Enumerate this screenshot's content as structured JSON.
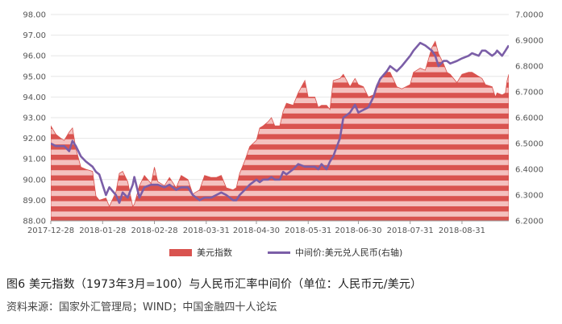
{
  "chart_data": {
    "type": "area",
    "colors": {
      "area": "#d9534f",
      "area_stripe": "#f4c1bf",
      "line": "#7b5ea7",
      "grid": "#e6e6e6"
    },
    "x_labels": [
      "2017-12-28",
      "2018-01-28",
      "2018-02-28",
      "2018-03-31",
      "2018-04-30",
      "2018-05-31",
      "2018-06-30",
      "2018-07-31",
      "2018-08-31"
    ],
    "y_left": {
      "min": 88,
      "max": 98,
      "ticks": [
        "88.00",
        "89.00",
        "90.00",
        "91.00",
        "92.00",
        "93.00",
        "94.00",
        "95.00",
        "96.00",
        "97.00",
        "98.00"
      ]
    },
    "y_right": {
      "min": 6.2,
      "max": 7.0,
      "ticks": [
        "6.2000",
        "6.3000",
        "6.4000",
        "6.5000",
        "6.6000",
        "6.7000",
        "6.8000",
        "6.9000",
        "7.0000"
      ]
    },
    "x_range": [
      "2017-12-28",
      "2018-09-28"
    ],
    "series": [
      {
        "name": "美元指数",
        "axis": "left",
        "points": [
          [
            "2017-12-28",
            92.6
          ],
          [
            "2017-12-31",
            92.2
          ],
          [
            "2018-01-03",
            92.0
          ],
          [
            "2018-01-05",
            91.9
          ],
          [
            "2018-01-08",
            92.3
          ],
          [
            "2018-01-10",
            92.5
          ],
          [
            "2018-01-12",
            91.5
          ],
          [
            "2018-01-15",
            90.6
          ],
          [
            "2018-01-18",
            90.5
          ],
          [
            "2018-01-22",
            90.4
          ],
          [
            "2018-01-24",
            89.2
          ],
          [
            "2018-01-26",
            89.0
          ],
          [
            "2018-01-30",
            89.1
          ],
          [
            "2018-02-01",
            88.7
          ],
          [
            "2018-02-05",
            89.4
          ],
          [
            "2018-02-07",
            90.3
          ],
          [
            "2018-02-09",
            90.4
          ],
          [
            "2018-02-12",
            89.9
          ],
          [
            "2018-02-15",
            88.7
          ],
          [
            "2018-02-16",
            88.8
          ],
          [
            "2018-02-19",
            89.7
          ],
          [
            "2018-02-22",
            90.2
          ],
          [
            "2018-02-26",
            89.8
          ],
          [
            "2018-02-28",
            90.6
          ],
          [
            "2018-03-02",
            89.9
          ],
          [
            "2018-03-06",
            89.7
          ],
          [
            "2018-03-09",
            90.1
          ],
          [
            "2018-03-13",
            89.6
          ],
          [
            "2018-03-16",
            90.2
          ],
          [
            "2018-03-20",
            90.0
          ],
          [
            "2018-03-23",
            89.3
          ],
          [
            "2018-03-27",
            89.5
          ],
          [
            "2018-03-30",
            90.2
          ],
          [
            "2018-04-03",
            90.1
          ],
          [
            "2018-04-06",
            90.1
          ],
          [
            "2018-04-09",
            90.2
          ],
          [
            "2018-04-12",
            89.6
          ],
          [
            "2018-04-16",
            89.5
          ],
          [
            "2018-04-18",
            89.6
          ],
          [
            "2018-04-20",
            90.3
          ],
          [
            "2018-04-23",
            90.9
          ],
          [
            "2018-04-26",
            91.6
          ],
          [
            "2018-04-30",
            91.9
          ],
          [
            "2018-05-02",
            92.5
          ],
          [
            "2018-05-04",
            92.6
          ],
          [
            "2018-05-07",
            92.8
          ],
          [
            "2018-05-09",
            93.0
          ],
          [
            "2018-05-11",
            92.6
          ],
          [
            "2018-05-14",
            92.6
          ],
          [
            "2018-05-16",
            93.3
          ],
          [
            "2018-05-18",
            93.7
          ],
          [
            "2018-05-22",
            93.6
          ],
          [
            "2018-05-25",
            94.2
          ],
          [
            "2018-05-29",
            94.8
          ],
          [
            "2018-05-31",
            94.0
          ],
          [
            "2018-06-04",
            94.0
          ],
          [
            "2018-06-06",
            93.5
          ],
          [
            "2018-06-08",
            93.6
          ],
          [
            "2018-06-11",
            93.6
          ],
          [
            "2018-06-13",
            93.4
          ],
          [
            "2018-06-15",
            94.8
          ],
          [
            "2018-06-19",
            94.9
          ],
          [
            "2018-06-21",
            95.1
          ],
          [
            "2018-06-25",
            94.5
          ],
          [
            "2018-06-28",
            94.9
          ],
          [
            "2018-06-30",
            94.6
          ],
          [
            "2018-07-03",
            94.5
          ],
          [
            "2018-07-06",
            94.0
          ],
          [
            "2018-07-09",
            94.1
          ],
          [
            "2018-07-11",
            94.6
          ],
          [
            "2018-07-13",
            94.9
          ],
          [
            "2018-07-17",
            95.2
          ],
          [
            "2018-07-19",
            95.2
          ],
          [
            "2018-07-23",
            94.5
          ],
          [
            "2018-07-26",
            94.4
          ],
          [
            "2018-07-31",
            94.6
          ],
          [
            "2018-08-02",
            95.2
          ],
          [
            "2018-08-06",
            95.4
          ],
          [
            "2018-08-09",
            95.3
          ],
          [
            "2018-08-13",
            96.4
          ],
          [
            "2018-08-15",
            96.7
          ],
          [
            "2018-08-17",
            96.1
          ],
          [
            "2018-08-20",
            95.6
          ],
          [
            "2018-08-22",
            95.2
          ],
          [
            "2018-08-24",
            95.1
          ],
          [
            "2018-08-28",
            94.7
          ],
          [
            "2018-08-31",
            95.1
          ],
          [
            "2018-09-04",
            95.2
          ],
          [
            "2018-09-06",
            95.2
          ],
          [
            "2018-09-10",
            95.0
          ],
          [
            "2018-09-12",
            94.9
          ],
          [
            "2018-09-14",
            94.6
          ],
          [
            "2018-09-18",
            94.5
          ],
          [
            "2018-09-20",
            94.0
          ],
          [
            "2018-09-21",
            94.2
          ],
          [
            "2018-09-24",
            94.1
          ],
          [
            "2018-09-26",
            94.2
          ],
          [
            "2018-09-27",
            94.8
          ],
          [
            "2018-09-28",
            95.1
          ]
        ]
      },
      {
        "name": "中间价:美元兑人民币(右轴)",
        "axis": "right",
        "points": [
          [
            "2017-12-28",
            6.5
          ],
          [
            "2017-12-31",
            6.49
          ],
          [
            "2018-01-03",
            6.49
          ],
          [
            "2018-01-05",
            6.49
          ],
          [
            "2018-01-08",
            6.47
          ],
          [
            "2018-01-10",
            6.51
          ],
          [
            "2018-01-12",
            6.49
          ],
          [
            "2018-01-15",
            6.45
          ],
          [
            "2018-01-18",
            6.43
          ],
          [
            "2018-01-22",
            6.41
          ],
          [
            "2018-01-24",
            6.39
          ],
          [
            "2018-01-26",
            6.38
          ],
          [
            "2018-01-30",
            6.3
          ],
          [
            "2018-02-01",
            6.33
          ],
          [
            "2018-02-05",
            6.3
          ],
          [
            "2018-02-07",
            6.27
          ],
          [
            "2018-02-09",
            6.31
          ],
          [
            "2018-02-12",
            6.29
          ],
          [
            "2018-02-15",
            6.34
          ],
          [
            "2018-02-16",
            6.37
          ],
          [
            "2018-02-19",
            6.29
          ],
          [
            "2018-02-22",
            6.33
          ],
          [
            "2018-02-26",
            6.34
          ],
          [
            "2018-02-28",
            6.34
          ],
          [
            "2018-03-02",
            6.34
          ],
          [
            "2018-03-06",
            6.33
          ],
          [
            "2018-03-09",
            6.34
          ],
          [
            "2018-03-13",
            6.32
          ],
          [
            "2018-03-16",
            6.33
          ],
          [
            "2018-03-20",
            6.33
          ],
          [
            "2018-03-23",
            6.3
          ],
          [
            "2018-03-27",
            6.28
          ],
          [
            "2018-03-30",
            6.29
          ],
          [
            "2018-04-03",
            6.29
          ],
          [
            "2018-04-06",
            6.3
          ],
          [
            "2018-04-09",
            6.31
          ],
          [
            "2018-04-12",
            6.3
          ],
          [
            "2018-04-16",
            6.28
          ],
          [
            "2018-04-18",
            6.28
          ],
          [
            "2018-04-20",
            6.3
          ],
          [
            "2018-04-23",
            6.32
          ],
          [
            "2018-04-26",
            6.34
          ],
          [
            "2018-04-30",
            6.36
          ],
          [
            "2018-05-02",
            6.35
          ],
          [
            "2018-05-04",
            6.36
          ],
          [
            "2018-05-07",
            6.36
          ],
          [
            "2018-05-09",
            6.37
          ],
          [
            "2018-05-11",
            6.36
          ],
          [
            "2018-05-14",
            6.36
          ],
          [
            "2018-05-16",
            6.39
          ],
          [
            "2018-05-18",
            6.38
          ],
          [
            "2018-05-22",
            6.4
          ],
          [
            "2018-05-25",
            6.42
          ],
          [
            "2018-05-29",
            6.41
          ],
          [
            "2018-05-31",
            6.41
          ],
          [
            "2018-06-04",
            6.41
          ],
          [
            "2018-06-06",
            6.4
          ],
          [
            "2018-06-08",
            6.42
          ],
          [
            "2018-06-11",
            6.4
          ],
          [
            "2018-06-13",
            6.43
          ],
          [
            "2018-06-15",
            6.45
          ],
          [
            "2018-06-19",
            6.52
          ],
          [
            "2018-06-21",
            6.6
          ],
          [
            "2018-06-25",
            6.62
          ],
          [
            "2018-06-28",
            6.65
          ],
          [
            "2018-06-30",
            6.62
          ],
          [
            "2018-07-03",
            6.63
          ],
          [
            "2018-07-06",
            6.64
          ],
          [
            "2018-07-09",
            6.68
          ],
          [
            "2018-07-11",
            6.72
          ],
          [
            "2018-07-13",
            6.75
          ],
          [
            "2018-07-17",
            6.78
          ],
          [
            "2018-07-19",
            6.8
          ],
          [
            "2018-07-23",
            6.78
          ],
          [
            "2018-07-26",
            6.8
          ],
          [
            "2018-07-31",
            6.84
          ],
          [
            "2018-08-02",
            6.86
          ],
          [
            "2018-08-06",
            6.89
          ],
          [
            "2018-08-09",
            6.88
          ],
          [
            "2018-08-13",
            6.86
          ],
          [
            "2018-08-15",
            6.84
          ],
          [
            "2018-08-17",
            6.8
          ],
          [
            "2018-08-20",
            6.82
          ],
          [
            "2018-08-22",
            6.82
          ],
          [
            "2018-08-24",
            6.81
          ],
          [
            "2018-08-28",
            6.82
          ],
          [
            "2018-08-31",
            6.83
          ],
          [
            "2018-09-04",
            6.84
          ],
          [
            "2018-09-06",
            6.85
          ],
          [
            "2018-09-10",
            6.84
          ],
          [
            "2018-09-12",
            6.86
          ],
          [
            "2018-09-14",
            6.86
          ],
          [
            "2018-09-18",
            6.84
          ],
          [
            "2018-09-20",
            6.85
          ],
          [
            "2018-09-21",
            6.86
          ],
          [
            "2018-09-24",
            6.84
          ],
          [
            "2018-09-26",
            6.86
          ],
          [
            "2018-09-27",
            6.87
          ],
          [
            "2018-09-28",
            6.88
          ]
        ]
      }
    ]
  },
  "legend": {
    "area_label": "美元指数",
    "line_label": "中间价:美元兑人民币(右轴)"
  },
  "caption": "图6  美元指数（1973年3月=100）与人民币汇率中间价（单位：人民币元/美元）",
  "source": "资料来源：国家外汇管理局；WIND；中国金融四十人论坛"
}
